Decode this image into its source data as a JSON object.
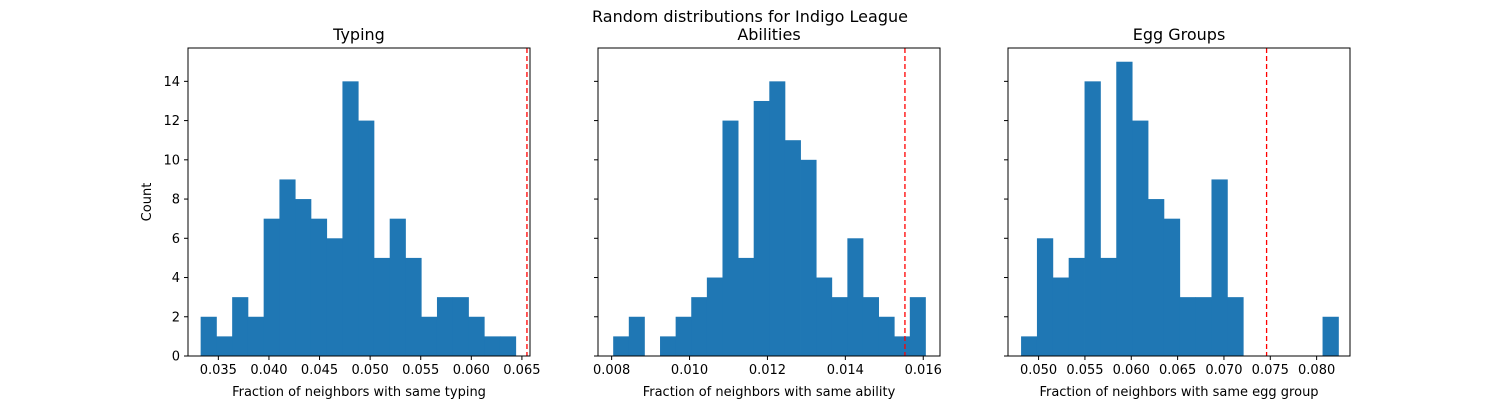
{
  "figure_title": "Random distributions for Indigo League",
  "bar_color": "#1f77b4",
  "threshold_color": "#ff0000",
  "chart_data": [
    {
      "type": "bar",
      "title": "Typing",
      "xlabel": "Fraction of neighbors with same typing",
      "ylabel": "Count",
      "xlim": [
        0.032,
        0.0658
      ],
      "ylim": [
        0,
        15.7
      ],
      "xticks": [
        0.035,
        0.04,
        0.045,
        0.05,
        0.055,
        0.06,
        0.065
      ],
      "xtick_labels": [
        "0.035",
        "0.040",
        "0.045",
        "0.050",
        "0.055",
        "0.060",
        "0.065"
      ],
      "yticks": [
        0,
        2,
        4,
        6,
        8,
        10,
        12,
        14
      ],
      "ytick_labels": [
        "0",
        "2",
        "4",
        "6",
        "8",
        "10",
        "12",
        "14"
      ],
      "bin_start": 0.03325,
      "bin_width": 0.001557,
      "values": [
        2,
        1,
        3,
        2,
        7,
        9,
        8,
        7,
        6,
        14,
        12,
        5,
        7,
        5,
        2,
        3,
        3,
        2,
        1,
        1
      ],
      "threshold": 0.0655
    },
    {
      "type": "bar",
      "title": "Abilities",
      "xlabel": "Fraction of neighbors with same ability",
      "ylabel": "",
      "xlim": [
        0.00765,
        0.01643
      ],
      "ylim": [
        0,
        15.7
      ],
      "xticks": [
        0.008,
        0.01,
        0.012,
        0.014,
        0.016
      ],
      "xtick_labels": [
        "0.008",
        "0.010",
        "0.012",
        "0.014",
        "0.016"
      ],
      "yticks": [
        0,
        2,
        4,
        6,
        8,
        10,
        12,
        14
      ],
      "ytick_labels": [
        "",
        "",
        "",
        "",
        "",
        "",
        "",
        ""
      ],
      "bin_start": 0.00804,
      "bin_width": 0.0004008,
      "values": [
        1,
        2,
        0,
        1,
        2,
        3,
        4,
        12,
        5,
        13,
        14,
        11,
        10,
        4,
        3,
        6,
        3,
        2,
        1,
        3
      ],
      "threshold": 0.01553
    },
    {
      "type": "bar",
      "title": "Egg Groups",
      "xlabel": "Fraction of neighbors with same egg group",
      "ylabel": "",
      "xlim": [
        0.0467,
        0.0836
      ],
      "ylim": [
        0,
        15.7
      ],
      "xticks": [
        0.05,
        0.055,
        0.06,
        0.065,
        0.07,
        0.075,
        0.08
      ],
      "xtick_labels": [
        "0.050",
        "0.055",
        "0.060",
        "0.065",
        "0.070",
        "0.075",
        "0.080"
      ],
      "yticks": [
        0,
        2,
        4,
        6,
        8,
        10,
        12,
        14
      ],
      "ytick_labels": [
        "",
        "",
        "",
        "",
        "",
        "",
        "",
        ""
      ],
      "bin_start": 0.04811,
      "bin_width": 0.001712,
      "values": [
        1,
        6,
        4,
        5,
        14,
        5,
        15,
        12,
        8,
        7,
        3,
        3,
        9,
        3,
        0,
        0,
        0,
        0,
        0,
        2
      ],
      "threshold": 0.0746
    }
  ]
}
